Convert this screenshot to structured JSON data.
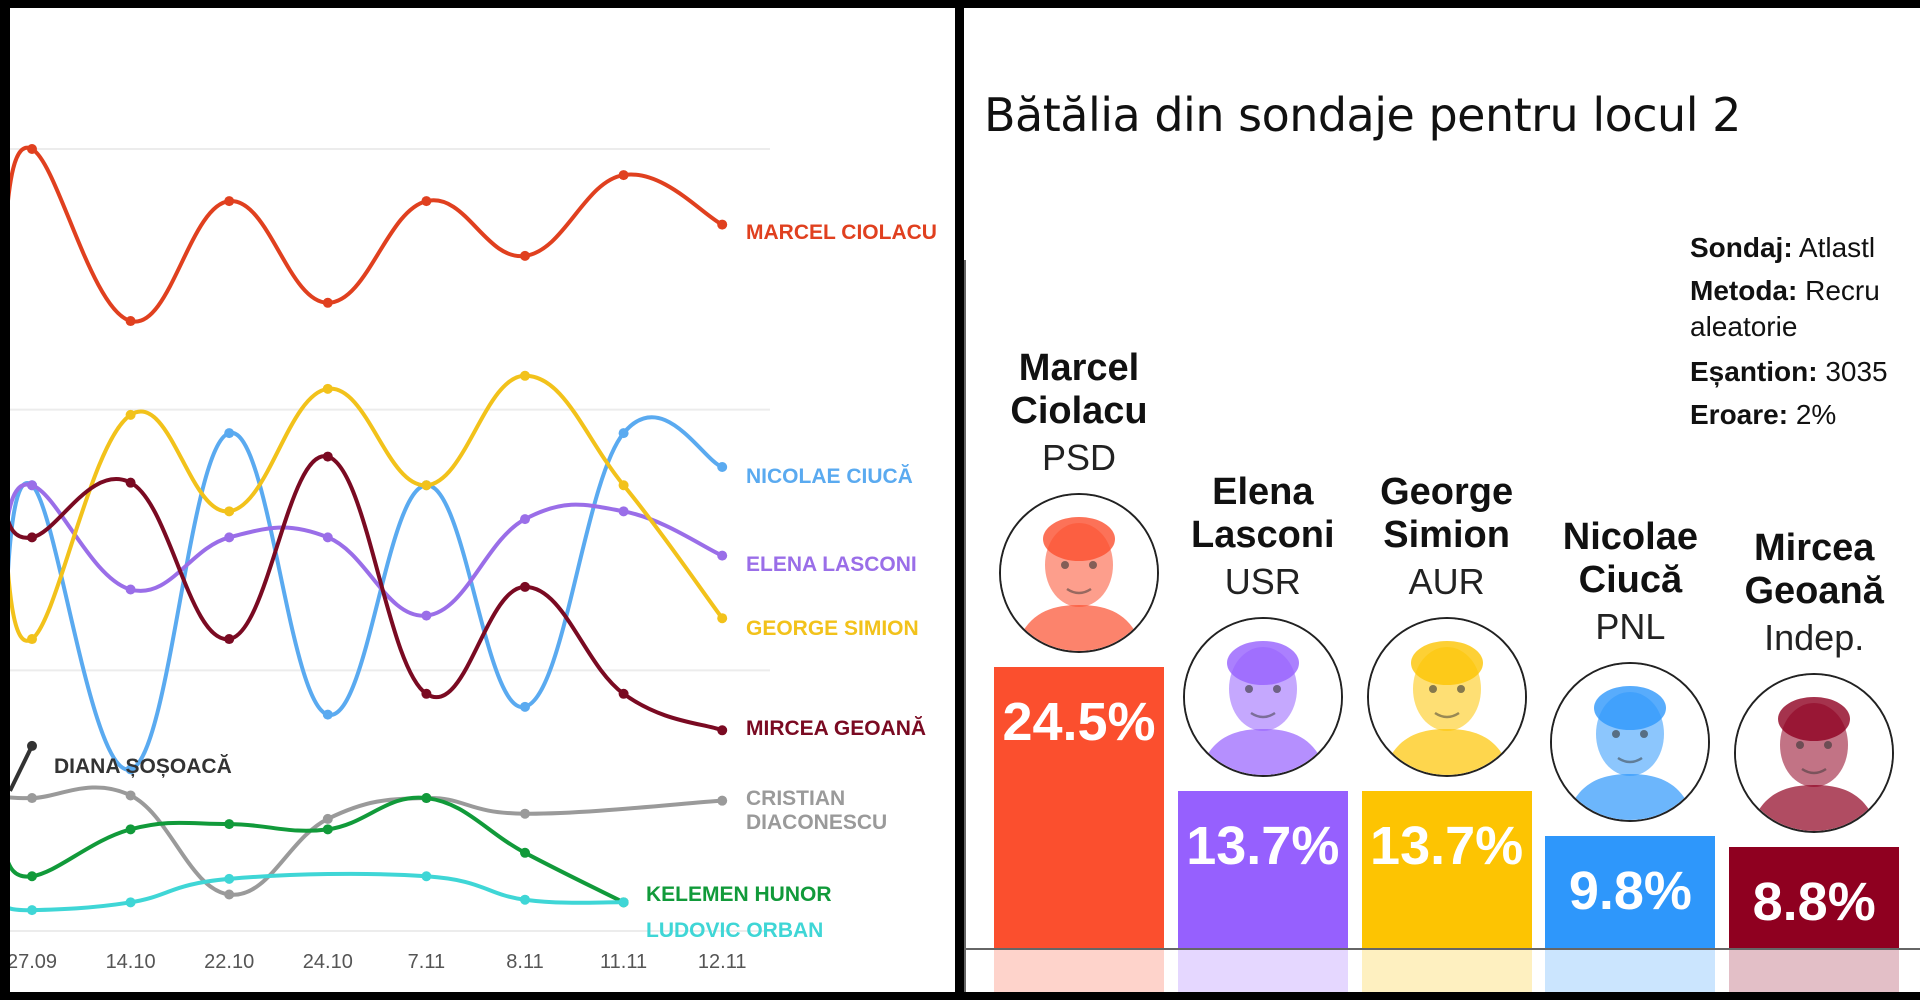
{
  "chart_data": [
    {
      "type": "line",
      "title": "",
      "xlabel": "",
      "ylabel": "",
      "ylim": [
        0,
        30
      ],
      "grid": true,
      "categories": [
        "27.09",
        "14.10",
        "22.10",
        "24.10",
        "7.11",
        "8.11",
        "11.11",
        "12.11"
      ],
      "series": [
        {
          "name": "MARCEL CIOLACU",
          "color": "#e0401f",
          "values": [
            30.0,
            23.4,
            28.0,
            24.1,
            28.0,
            25.9,
            29.0,
            27.1
          ]
        },
        {
          "name": "NICOLAE CIUCĂ",
          "color": "#5aaaf0",
          "values": [
            17.1,
            6.2,
            19.1,
            8.3,
            17.1,
            8.6,
            19.1,
            17.8
          ]
        },
        {
          "name": "ELENA LASCONI",
          "color": "#9a6ee8",
          "values": [
            17.1,
            13.1,
            15.1,
            15.1,
            12.1,
            15.8,
            16.1,
            14.4
          ]
        },
        {
          "name": "GEORGE SIMION",
          "color": "#f2c21b",
          "values": [
            11.2,
            19.8,
            16.1,
            20.8,
            17.1,
            21.3,
            17.1,
            12.0
          ]
        },
        {
          "name": "MIRCEA GEOANĂ",
          "color": "#7a0a22",
          "values": [
            15.1,
            17.2,
            11.2,
            18.2,
            9.1,
            13.2,
            9.1,
            7.7
          ]
        },
        {
          "name": "DIANA ȘOȘOACĂ",
          "color": "#333333",
          "values": [
            7.1,
            null,
            null,
            null,
            null,
            null,
            null,
            null
          ]
        },
        {
          "name": "CRISTIAN DIACONESCU",
          "color": "#9a9a9a",
          "values": [
            5.1,
            5.2,
            1.4,
            4.3,
            5.1,
            4.5,
            null,
            5.0
          ]
        },
        {
          "name": "KELEMEN HUNOR",
          "color": "#119a3a",
          "values": [
            2.1,
            3.9,
            4.1,
            3.9,
            5.1,
            3.0,
            1.1,
            null
          ]
        },
        {
          "name": "LUDOVIC ORBAN",
          "color": "#3fd6d6",
          "values": [
            0.8,
            1.1,
            2.0,
            null,
            2.1,
            1.2,
            1.1,
            null
          ]
        }
      ],
      "labels": {
        "ciolacu": "MARCEL CIOLACU",
        "ciuca": "NICOLAE CIUCĂ",
        "lasconi": "ELENA LASCONI",
        "simion": "GEORGE SIMION",
        "geoana": "MIRCEA GEOANĂ",
        "sosoaca": "DIANA ȘOȘOACĂ",
        "diaconescu_1": "CRISTIAN",
        "diaconescu_2": "DIACONESCU",
        "kelemen": "KELEMEN HUNOR",
        "orban": "LUDOVIC ORBAN"
      }
    },
    {
      "type": "bar",
      "title": "Bătălia din sondaje pentru locul 2",
      "xlabel": "",
      "ylabel": "",
      "ylim": [
        0,
        30
      ],
      "categories": [
        "Marcel Ciolacu",
        "Elena Lasconi",
        "George Simion",
        "Nicolae Ciucă",
        "Mircea Geoană"
      ],
      "values": [
        24.5,
        13.7,
        13.7,
        9.8,
        8.8
      ],
      "candidates": [
        {
          "first": "Marcel",
          "last": "Ciolacu",
          "party": "PSD",
          "value": 24.5,
          "label": "24.5%",
          "color": "#fb4f2e",
          "light": "#fdd3cc"
        },
        {
          "first": "Elena",
          "last": "Lasconi",
          "party": "USR",
          "value": 13.7,
          "label": "13.7%",
          "color": "#9660fe",
          "light": "#e3d4ff"
        },
        {
          "first": "George",
          "last": "Simion",
          "party": "AUR",
          "value": 13.7,
          "label": "13.7%",
          "color": "#fdc402",
          "light": "#fdedc1"
        },
        {
          "first": "Nicolae",
          "last": "Ciucă",
          "party": "PNL",
          "value": 9.8,
          "label": "9.8%",
          "color": "#2e97fb",
          "light": "#c7e2fd"
        },
        {
          "first": "Mircea",
          "last": "Geoană",
          "party": "Indep.",
          "value": 8.8,
          "label": "8.8%",
          "color": "#8f0020",
          "light": "#e1b9c2"
        }
      ],
      "info": {
        "sondaj_key": "Sondaj:",
        "sondaj_val": " Atlastl",
        "metoda_key": "Metoda:",
        "metoda_val": " Recru",
        "metoda_cont": "aleatorie",
        "esantion_key": "Eșantion:",
        "esantion_val": " 3035",
        "eroare_key": "Eroare:",
        "eroare_val": " 2%"
      }
    }
  ]
}
